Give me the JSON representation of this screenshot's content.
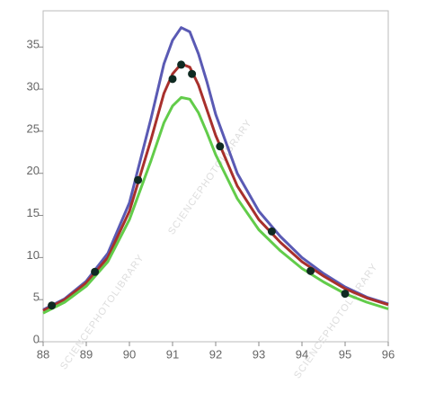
{
  "chart_data": {
    "type": "line",
    "watermark": "SCIENCEPHOTOLIBRARY",
    "x": [
      88,
      88.5,
      89,
      89.5,
      90,
      90.5,
      90.8,
      91,
      91.2,
      91.4,
      91.6,
      91.8,
      92,
      92.5,
      93,
      93.5,
      94,
      94.5,
      95,
      95.5,
      96
    ],
    "series": [
      {
        "color": "#5a5ab4",
        "values": [
          3.8,
          5.1,
          7.2,
          10.5,
          16.5,
          26.5,
          33,
          35.8,
          37.3,
          36.8,
          34.2,
          30.8,
          27,
          20,
          15.5,
          12.5,
          10,
          8.1,
          6.5,
          5.3,
          4.5
        ]
      },
      {
        "color": "#a8302c",
        "values": [
          3.7,
          5.0,
          7.0,
          10.0,
          15.5,
          24,
          29.5,
          31.8,
          33.0,
          32.6,
          30.5,
          27.5,
          24.5,
          18.5,
          14.5,
          11.8,
          9.5,
          7.8,
          6.3,
          5.2,
          4.4
        ]
      },
      {
        "color": "#62cc4a",
        "values": [
          3.4,
          4.7,
          6.6,
          9.5,
          14.5,
          21.5,
          26,
          28,
          29,
          28.8,
          27.2,
          24.8,
          22.2,
          17,
          13.3,
          10.8,
          8.7,
          7.1,
          5.7,
          4.7,
          3.9
        ]
      }
    ],
    "points": {
      "color": "#0f2a22",
      "x": [
        88.2,
        89.2,
        90.2,
        91.0,
        91.2,
        91.45,
        92.1,
        93.3,
        94.2,
        95.0
      ],
      "y": [
        4.3,
        8.3,
        19.2,
        31.2,
        32.9,
        31.8,
        23.2,
        13.1,
        8.4,
        5.7
      ]
    },
    "xlim": [
      88,
      96
    ],
    "xticks": [
      88,
      89,
      90,
      91,
      92,
      93,
      94,
      95,
      96
    ],
    "ylim": [
      0,
      39.3
    ],
    "yticks": [
      0,
      5,
      10,
      15,
      20,
      25,
      30,
      35
    ]
  }
}
